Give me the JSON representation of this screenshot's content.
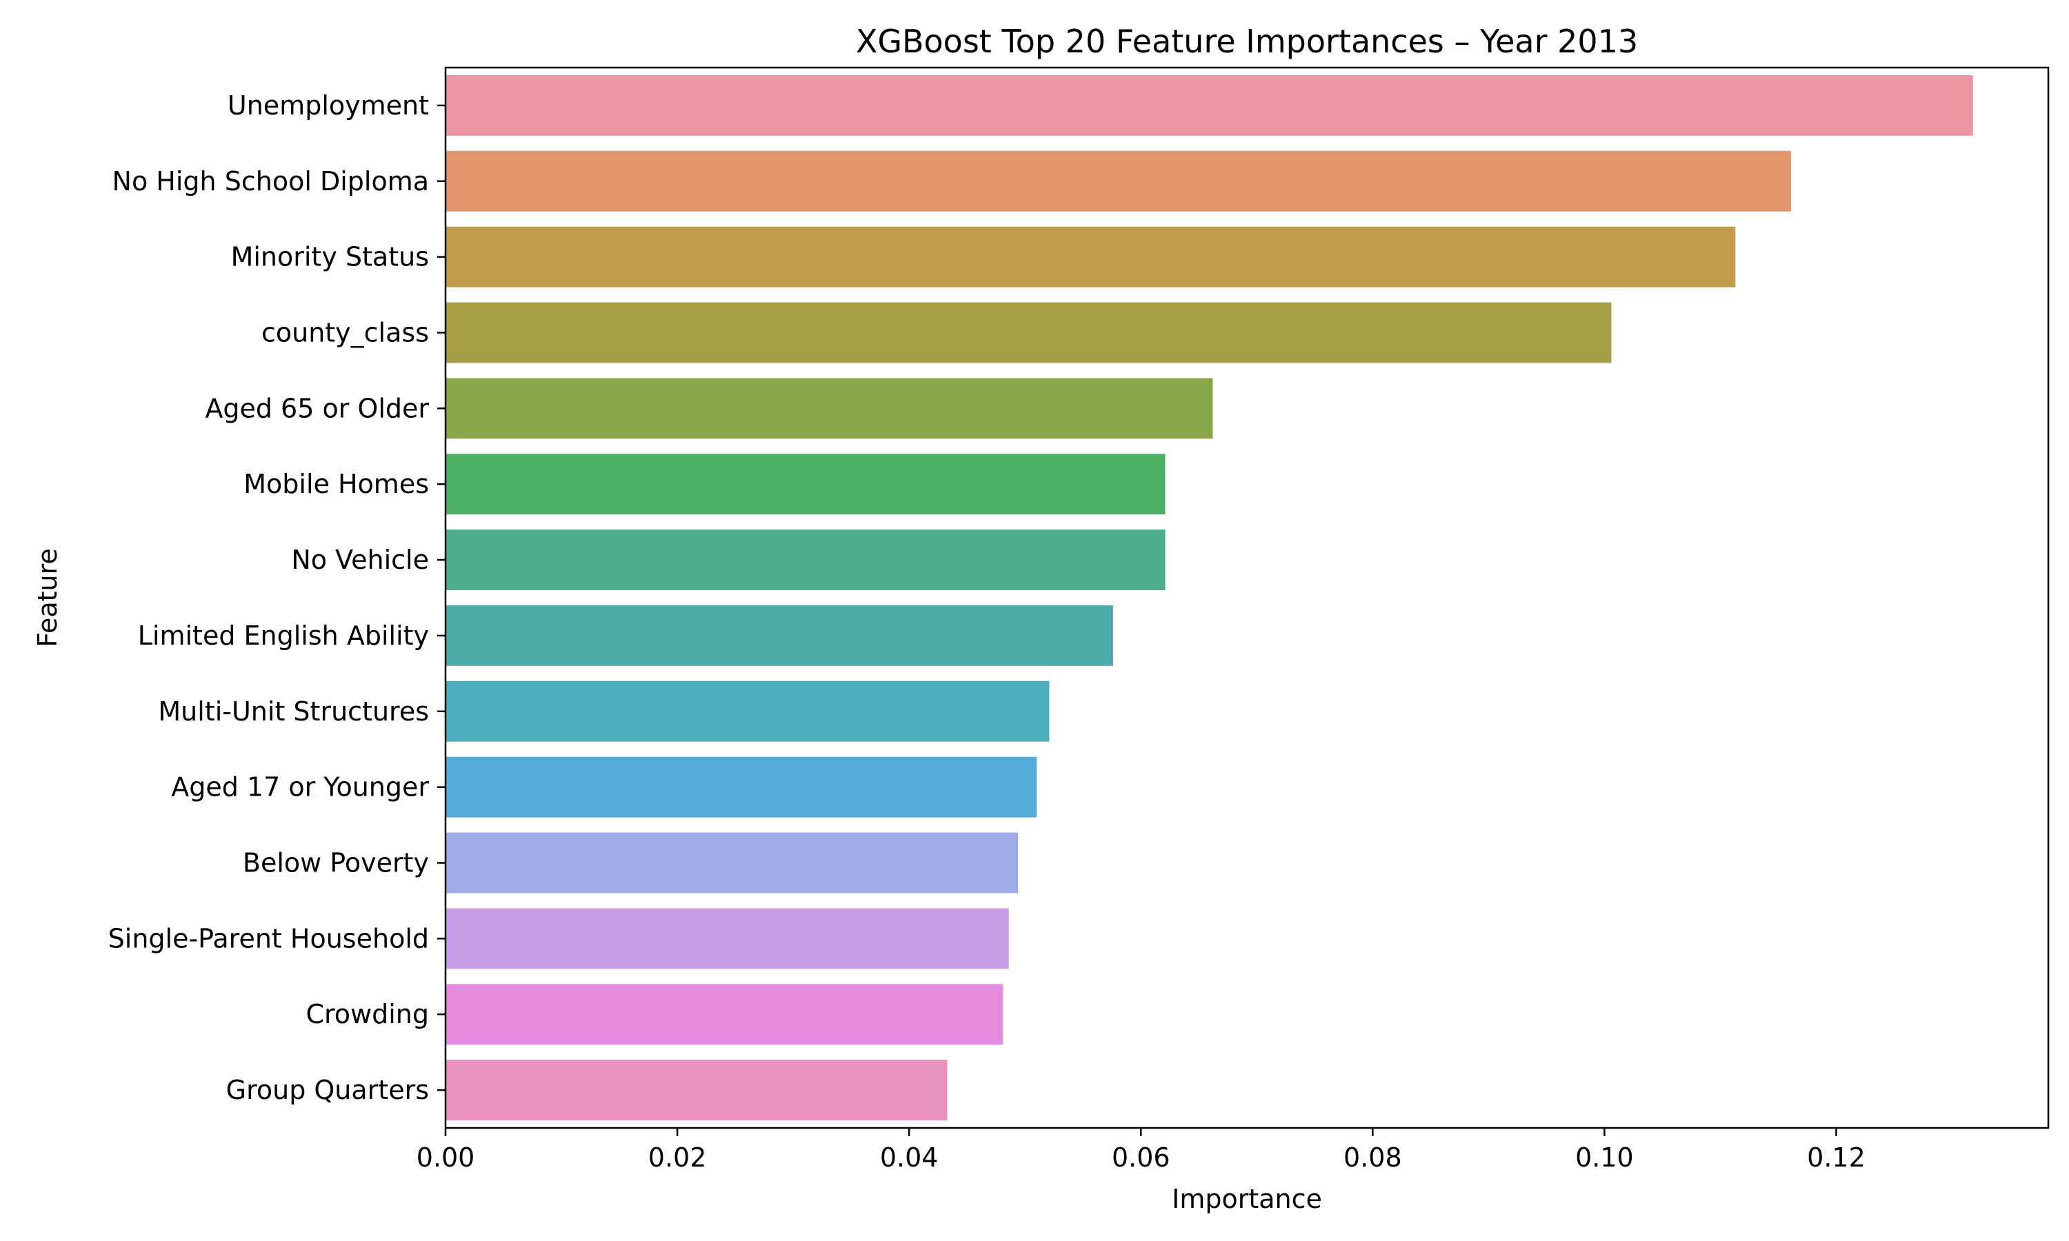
{
  "chart_data": {
    "type": "bar",
    "orientation": "horizontal",
    "title": "XGBoost Top 20 Feature Importances – Year 2013",
    "xlabel": "Importance",
    "ylabel": "Feature",
    "xlim": [
      0,
      0.1383
    ],
    "xticks": [
      0.0,
      0.02,
      0.04,
      0.06,
      0.08,
      0.1,
      0.12
    ],
    "xtick_labels": [
      "0.00",
      "0.02",
      "0.04",
      "0.06",
      "0.08",
      "0.10",
      "0.12"
    ],
    "grid": false,
    "legend": "none",
    "categories": [
      "Unemployment",
      "No High School Diploma",
      "Minority Status",
      "county_class",
      "Aged 65 or Older",
      "Mobile Homes",
      "No Vehicle",
      "Limited English Ability",
      "Multi-Unit Structures",
      "Aged 17 or Younger",
      "Below Poverty",
      "Single-Parent Household",
      "Crowding",
      "Group Quarters"
    ],
    "values": [
      0.1318,
      0.1161,
      0.1113,
      0.1006,
      0.0662,
      0.0621,
      0.0621,
      0.0576,
      0.0521,
      0.051,
      0.0494,
      0.0486,
      0.0481,
      0.0433
    ],
    "colors": [
      "#eb96a3",
      "#e3956b",
      "#c39a4b",
      "#a59f46",
      "#89a948",
      "#4bb062",
      "#4cac8b",
      "#4daba8",
      "#4eaebe",
      "#53abd6",
      "#a1abe7",
      "#c89fe6",
      "#e88be0",
      "#e991bf"
    ]
  }
}
